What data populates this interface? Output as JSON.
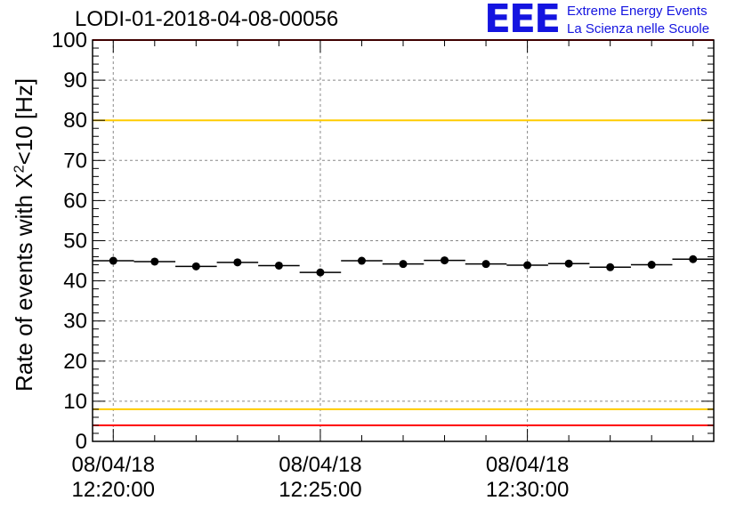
{
  "logo": {
    "text": "EEE",
    "line1": "Extreme Energy Events",
    "line2": "La Scienza nelle Scuole",
    "color": "#1414e0"
  },
  "chart_data": {
    "type": "scatter",
    "title": "LODI-01-2018-04-08-00056",
    "ylabel_main": "Rate of events with X",
    "ylabel_sup": "2",
    "ylabel_tail": "<10 [Hz]",
    "xlabel": "",
    "ylim": [
      0,
      100
    ],
    "yticks": [
      0,
      10,
      20,
      30,
      40,
      50,
      60,
      70,
      80,
      90,
      100
    ],
    "xlim_minutes": [
      0,
      14.5
    ],
    "xtick_labels": [
      {
        "date": "08/04/18",
        "time": "12:20:00",
        "minute": 0
      },
      {
        "date": "08/04/18",
        "time": "12:25:00",
        "minute": 5
      },
      {
        "date": "08/04/18",
        "time": "12:30:00",
        "minute": 10
      }
    ],
    "grid": true,
    "reference_lines": [
      {
        "y": 100,
        "color": "#ff0000"
      },
      {
        "y": 80,
        "color": "#ffcc00"
      },
      {
        "y": 8,
        "color": "#ffcc00"
      },
      {
        "y": 4,
        "color": "#ff0000"
      }
    ],
    "series": [
      {
        "x_minutes": [
          0,
          1,
          2,
          3,
          4,
          5,
          6,
          7,
          8,
          9,
          10,
          11,
          12,
          13,
          14
        ],
        "y": [
          45.0,
          44.8,
          43.6,
          44.6,
          43.8,
          42.1,
          45.0,
          44.2,
          45.1,
          44.2,
          43.9,
          44.3,
          43.4,
          44.0,
          45.4
        ],
        "bin_width_minutes": 1
      }
    ]
  }
}
